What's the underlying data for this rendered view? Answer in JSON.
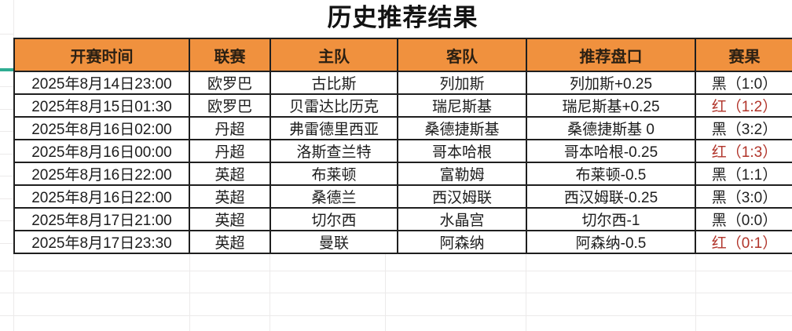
{
  "title": "历史推荐结果",
  "colors": {
    "header_bg": "#F0913E",
    "table_border": "#1F1F1F",
    "result_red": "#B1342A",
    "result_black": "#1F1F1F",
    "pane_indicator": "#2FAD92",
    "gridline": "#ECEAEA"
  },
  "table": {
    "headers": [
      "开赛时间",
      "联赛",
      "主队",
      "客队",
      "推荐盘口",
      "赛果"
    ],
    "rows": [
      {
        "time": "2025年8月14日23:00",
        "league": "欧罗巴",
        "home": "古比斯",
        "away": "列加斯",
        "handicap": "列加斯+0.25",
        "result": "黑（1:0）",
        "result_color": "black"
      },
      {
        "time": "2025年8月15日01:30",
        "league": "欧罗巴",
        "home": "贝雷达比历克",
        "away": "瑞尼斯基",
        "handicap": "瑞尼斯基+0.25",
        "result": "红（1:2）",
        "result_color": "red"
      },
      {
        "time": "2025年8月16日02:00",
        "league": "丹超",
        "home": "弗雷德里西亚",
        "away": "桑德捷斯基",
        "handicap": "桑德捷斯基 0",
        "result": "黑（3:2）",
        "result_color": "black"
      },
      {
        "time": "2025年8月16日00:00",
        "league": "丹超",
        "home": "洛斯查兰特",
        "away": "哥本哈根",
        "handicap": "哥本哈根-0.25",
        "result": "红（1:3）",
        "result_color": "red"
      },
      {
        "time": "2025年8月16日22:00",
        "league": "英超",
        "home": "布莱顿",
        "away": "富勒姆",
        "handicap": "布莱顿-0.5",
        "result": "黑（1:1）",
        "result_color": "black"
      },
      {
        "time": "2025年8月16日22:00",
        "league": "英超",
        "home": "桑德兰",
        "away": "西汉姆联",
        "handicap": "西汉姆联-0.25",
        "result": "黑（3:0）",
        "result_color": "black"
      },
      {
        "time": "2025年8月17日21:00",
        "league": "英超",
        "home": "切尔西",
        "away": "水晶宫",
        "handicap": "切尔西-1",
        "result": "黑（0:0）",
        "result_color": "black"
      },
      {
        "time": "2025年8月17日23:30",
        "league": "英超",
        "home": "曼联",
        "away": "阿森纳",
        "handicap": "阿森纳-0.5",
        "result": "红（0:1）",
        "result_color": "red"
      }
    ]
  }
}
